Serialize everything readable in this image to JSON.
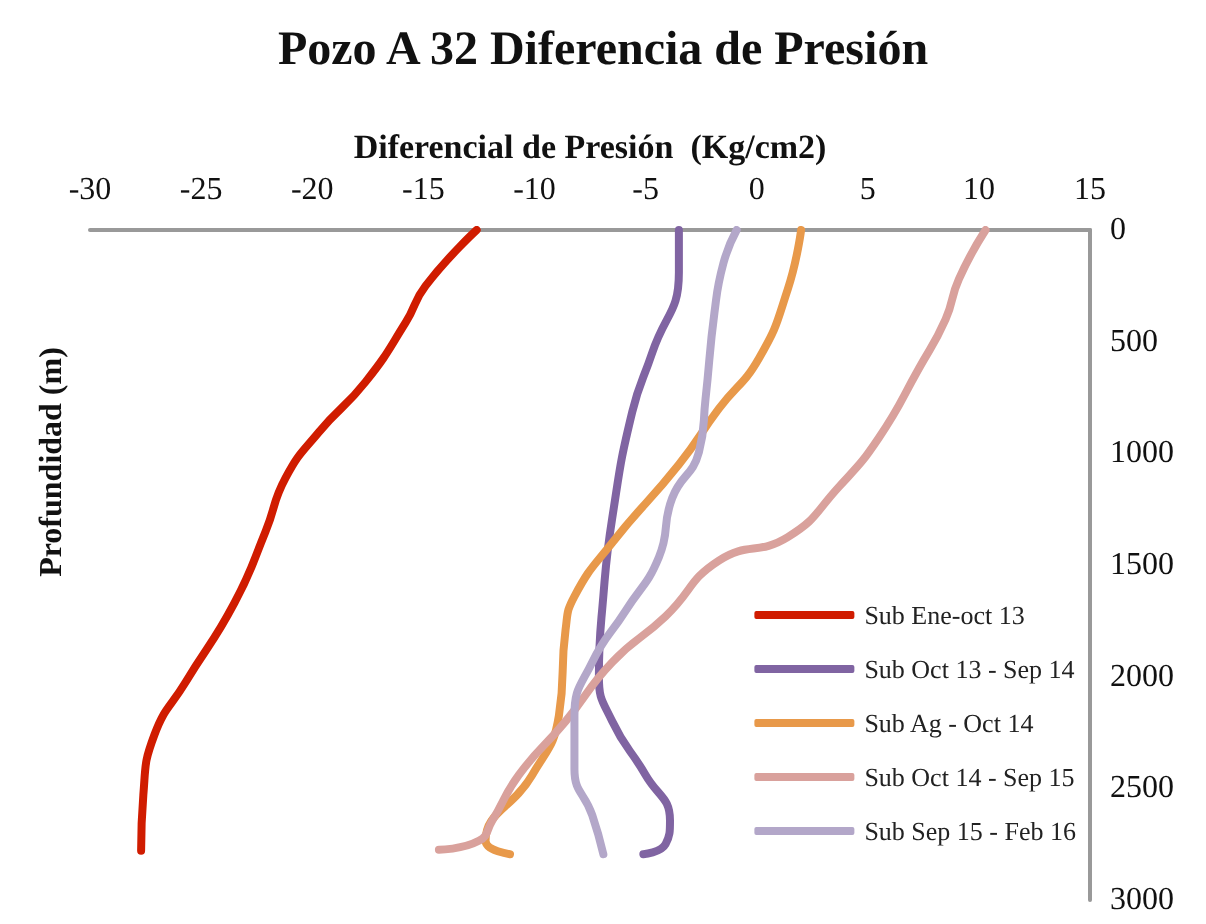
{
  "chart_data": {
    "type": "line",
    "title": "Pozo A 32 Diferencia de Presión",
    "xlabel": "Diferencial de Presión  (Kg/cm2)",
    "ylabel": "Profundidad (m)",
    "xlim": [
      -30,
      15
    ],
    "xticks": [
      -30,
      -25,
      -20,
      -15,
      -10,
      -5,
      0,
      5,
      10,
      15
    ],
    "ylim": [
      3000,
      0
    ],
    "yticks": [
      0,
      500,
      1000,
      1500,
      2000,
      2500,
      3000
    ],
    "grid": false,
    "legend": "bottom right",
    "marker": "none",
    "line_style": "solid",
    "series": [
      {
        "name": "Sub Ene-oct 13",
        "color": "#d01c00",
        "x": [
          -12.6,
          -14.9,
          -15.8,
          -17.6,
          -19.7,
          -21.2,
          -22.1,
          -23.5,
          -25.7,
          -27.1,
          -27.6,
          -27.7
        ],
        "values": [
          0,
          250,
          415,
          680,
          905,
          1110,
          1350,
          1670,
          2025,
          2260,
          2530,
          2780
        ]
      },
      {
        "name": "Sub Oct 13 - Sep 14",
        "color": "#8064a2",
        "x": [
          -3.5,
          -3.5,
          -4.7,
          -5.6,
          -6.5,
          -6.9,
          -7.1,
          -6.5,
          -5.0,
          -3.9,
          -4.1,
          -5.1
        ],
        "values": [
          0,
          190,
          550,
          815,
          1290,
          1640,
          2000,
          2200,
          2440,
          2645,
          2750,
          2795
        ]
      },
      {
        "name": "Sub Ag - Oct 14",
        "color": "#e8994a",
        "x": [
          2.0,
          1.4,
          0.1,
          -1.7,
          -3.5,
          -6.5,
          -8.2,
          -8.6,
          -8.9,
          -10.1,
          -12.2,
          -11.1
        ],
        "values": [
          0,
          265,
          575,
          800,
          1050,
          1400,
          1640,
          1790,
          2175,
          2440,
          2735,
          2795
        ]
      },
      {
        "name": "Sub Oct 14 - Sep 15",
        "color": "#d9a19c",
        "x": [
          10.3,
          9.1,
          8.5,
          7.3,
          5.5,
          3.7,
          1.4,
          -1.7,
          -4.1,
          -6.5,
          -8.6,
          -10.7,
          -11.9,
          -12.5,
          -14.3
        ],
        "values": [
          0,
          220,
          400,
          620,
          930,
          1150,
          1375,
          1480,
          1730,
          1935,
          2200,
          2440,
          2645,
          2735,
          2775
        ]
      },
      {
        "name": "Sub Sep 15 - Feb 16",
        "color": "#b3a7c9",
        "x": [
          -0.9,
          -1.5,
          -1.9,
          -2.3,
          -2.6,
          -3.8,
          -4.4,
          -5.9,
          -7.4,
          -8.2,
          -8.2,
          -7.4,
          -6.9
        ],
        "values": [
          0,
          150,
          370,
          755,
          995,
          1200,
          1465,
          1705,
          1935,
          2175,
          2415,
          2620,
          2795
        ]
      }
    ]
  }
}
